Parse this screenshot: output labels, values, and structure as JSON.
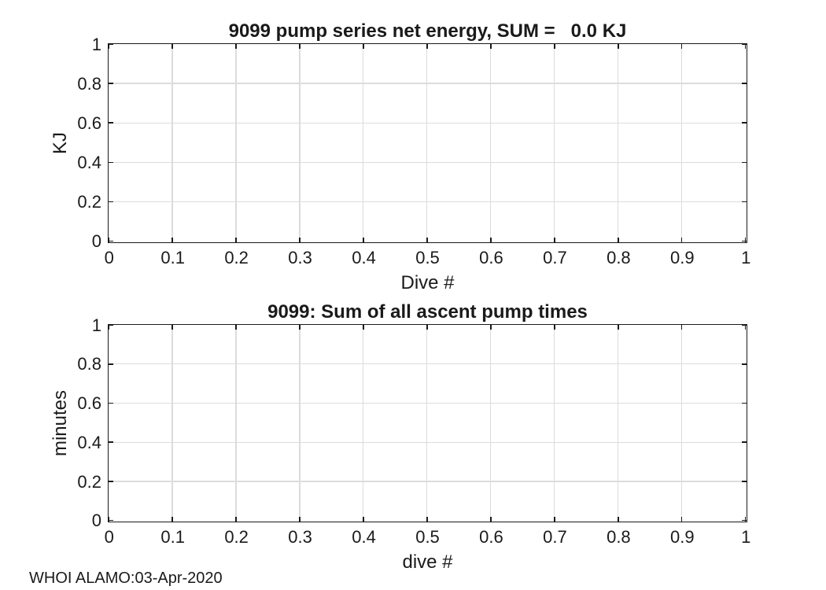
{
  "figure": {
    "footer": "WHOI ALAMO:03-Apr-2020"
  },
  "colors": {
    "background": "#ffffff",
    "axis": "#1a1a1a",
    "grid": "#dcdcdc",
    "text": "#1a1a1a"
  },
  "chart_data": [
    {
      "type": "line",
      "title": "9099 pump series net energy, SUM =   0.0 KJ",
      "xlabel": "Dive #",
      "ylabel": "KJ",
      "xlim": [
        0,
        1
      ],
      "ylim": [
        0,
        1
      ],
      "xticks": [
        0,
        0.1,
        0.2,
        0.3,
        0.4,
        0.5,
        0.6,
        0.7,
        0.8,
        0.9,
        1
      ],
      "xtick_labels": [
        "0",
        "0.1",
        "0.2",
        "0.3",
        "0.4",
        "0.5",
        "0.6",
        "0.7",
        "0.8",
        "0.9",
        "1"
      ],
      "yticks": [
        0,
        0.2,
        0.4,
        0.6,
        0.8,
        1
      ],
      "ytick_labels": [
        "0",
        "0.2",
        "0.4",
        "0.6",
        "0.8",
        "1"
      ],
      "grid": true,
      "box": true,
      "legend": null,
      "series": []
    },
    {
      "type": "line",
      "title": "9099: Sum of all ascent pump times",
      "xlabel": "dive #",
      "ylabel": "minutes",
      "xlim": [
        0,
        1
      ],
      "ylim": [
        0,
        1
      ],
      "xticks": [
        0,
        0.1,
        0.2,
        0.3,
        0.4,
        0.5,
        0.6,
        0.7,
        0.8,
        0.9,
        1
      ],
      "xtick_labels": [
        "0",
        "0.1",
        "0.2",
        "0.3",
        "0.4",
        "0.5",
        "0.6",
        "0.7",
        "0.8",
        "0.9",
        "1"
      ],
      "yticks": [
        0,
        0.2,
        0.4,
        0.6,
        0.8,
        1
      ],
      "ytick_labels": [
        "0",
        "0.2",
        "0.4",
        "0.6",
        "0.8",
        "1"
      ],
      "grid": true,
      "box": true,
      "legend": null,
      "series": []
    }
  ]
}
